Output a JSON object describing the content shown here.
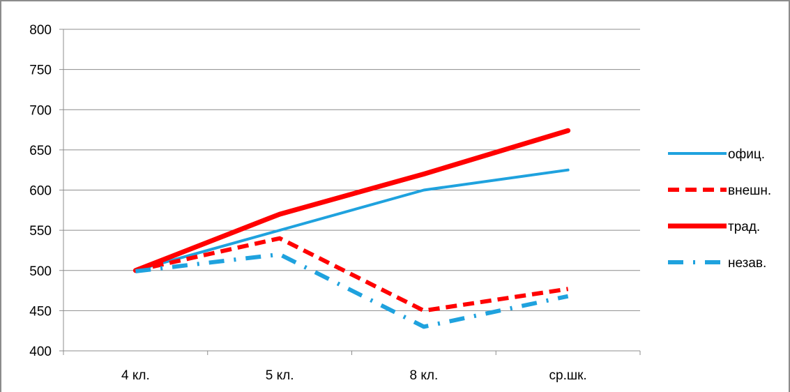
{
  "chart_data": {
    "type": "line",
    "categories": [
      "4 кл.",
      "5 кл.",
      "8 кл.",
      "ср.шк."
    ],
    "ylim": [
      400,
      800
    ],
    "yticks": [
      400,
      450,
      500,
      550,
      600,
      650,
      700,
      750,
      800
    ],
    "grid": true,
    "legend_position": "right",
    "series": [
      {
        "name": "офиц.",
        "values": [
          500,
          550,
          600,
          625
        ],
        "color": "#1fa2de",
        "style": "solid-thin"
      },
      {
        "name": "внешн.",
        "values": [
          500,
          540,
          450,
          477
        ],
        "color": "#ff0000",
        "style": "dashed"
      },
      {
        "name": "трад.",
        "values": [
          500,
          570,
          620,
          674
        ],
        "color": "#ff0000",
        "style": "solid-thick"
      },
      {
        "name": "незав.",
        "values": [
          499,
          520,
          430,
          468
        ],
        "color": "#1fa2de",
        "style": "dash-dot"
      }
    ]
  }
}
